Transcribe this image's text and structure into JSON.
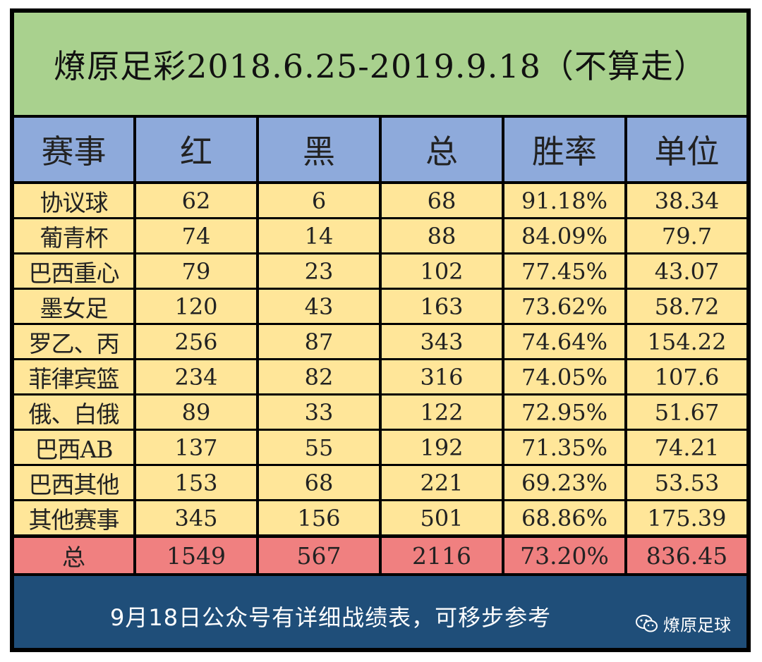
{
  "title": "燎原足彩2018.6.25-2019.9.18（不算走）",
  "headers": [
    "赛事",
    "红",
    "黑",
    "总",
    "胜率",
    "单位"
  ],
  "rows": [
    [
      "协议球",
      "62",
      "6",
      "68",
      "91.18%",
      "38.34"
    ],
    [
      "葡青杯",
      "74",
      "14",
      "88",
      "84.09%",
      "79.7"
    ],
    [
      "巴西重心",
      "79",
      "23",
      "102",
      "77.45%",
      "43.07"
    ],
    [
      "墨女足",
      "120",
      "43",
      "163",
      "73.62%",
      "58.72"
    ],
    [
      "罗乙、丙",
      "256",
      "87",
      "343",
      "74.64%",
      "154.22"
    ],
    [
      "菲律宾篮",
      "234",
      "82",
      "316",
      "74.05%",
      "107.6"
    ],
    [
      "俄、白俄",
      "89",
      "33",
      "122",
      "72.95%",
      "51.67"
    ],
    [
      "巴西AB",
      "137",
      "55",
      "192",
      "71.35%",
      "74.21"
    ],
    [
      "巴西其他",
      "153",
      "68",
      "221",
      "69.23%",
      "53.53"
    ],
    [
      "其他赛事",
      "345",
      "156",
      "501",
      "68.86%",
      "175.39"
    ]
  ],
  "total_row": [
    "总",
    "1549",
    "567",
    "2116",
    "73.20%",
    "836.45"
  ],
  "footer": {
    "note": "9月18日公众号有详细战绩表，可移步参考",
    "watermark": "燎原足球",
    "watermark_icon": "wechat-icon"
  },
  "colors": {
    "title_bg": "#a9d18e",
    "header_bg": "#8eaadb",
    "body_bg": "#ffe699",
    "total_bg": "#f08080",
    "footer_bg": "#1f4e79"
  }
}
